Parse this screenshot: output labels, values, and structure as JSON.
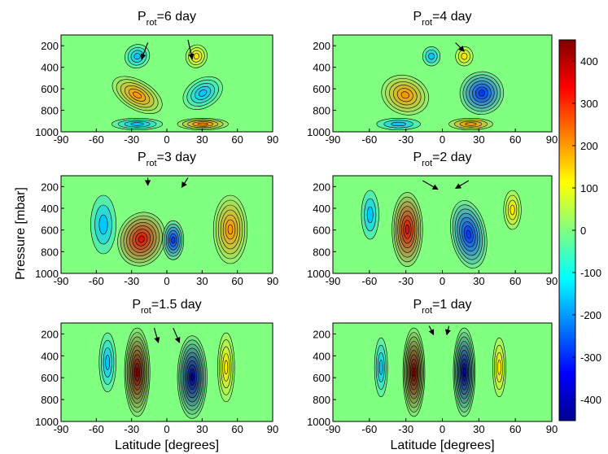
{
  "chart_data": [
    {
      "type": "contour",
      "title_main": "P",
      "title_sub": "rot",
      "title_rest": "=6 day",
      "xlim": [
        -90,
        90
      ],
      "xticks": [
        -90,
        -60,
        -30,
        0,
        30,
        60,
        90
      ],
      "ylim": [
        1000,
        100
      ],
      "yticks": [
        200,
        400,
        600,
        800,
        1000
      ]
    },
    {
      "type": "contour",
      "title_main": "P",
      "title_sub": "rot",
      "title_rest": "=4 day",
      "xlim": [
        -90,
        90
      ],
      "xticks": [
        -90,
        -60,
        -30,
        0,
        30,
        60,
        90
      ],
      "ylim": [
        1000,
        100
      ],
      "yticks": [
        200,
        400,
        600,
        800,
        1000
      ]
    },
    {
      "type": "contour",
      "title_main": "P",
      "title_sub": "rot",
      "title_rest": "=3 day",
      "ylabel": "Pressure [mbar]",
      "xlim": [
        -90,
        90
      ],
      "xticks": [
        -90,
        -60,
        -30,
        0,
        30,
        60,
        90
      ],
      "ylim": [
        1000,
        100
      ],
      "yticks": [
        200,
        400,
        600,
        800,
        1000
      ]
    },
    {
      "type": "contour",
      "title_main": "P",
      "title_sub": "rot",
      "title_rest": "=2 day",
      "xlim": [
        -90,
        90
      ],
      "xticks": [
        -90,
        -60,
        -30,
        0,
        30,
        60,
        90
      ],
      "ylim": [
        1000,
        100
      ],
      "yticks": [
        200,
        400,
        600,
        800,
        1000
      ]
    },
    {
      "type": "contour",
      "title_main": "P",
      "title_sub": "rot",
      "title_rest": "=1.5 day",
      "xlabel": "Latitude [degrees]",
      "xlim": [
        -90,
        90
      ],
      "xticks": [
        -90,
        -60,
        -30,
        0,
        30,
        60,
        90
      ],
      "ylim": [
        1000,
        100
      ],
      "yticks": [
        200,
        400,
        600,
        800,
        1000
      ]
    },
    {
      "type": "contour",
      "title_main": "P",
      "title_sub": "rot",
      "title_rest": "=1 day",
      "xlabel": "Latitude [degrees]",
      "xlim": [
        -90,
        90
      ],
      "xticks": [
        -90,
        -60,
        -30,
        0,
        30,
        60,
        90
      ],
      "ylim": [
        1000,
        100
      ],
      "yticks": [
        200,
        400,
        600,
        800,
        1000
      ]
    }
  ],
  "colorbar": {
    "colormap": "jet",
    "lim": [
      -450,
      450
    ],
    "ticks": [
      -400,
      -300,
      -200,
      -100,
      0,
      100,
      200,
      300,
      400
    ]
  }
}
